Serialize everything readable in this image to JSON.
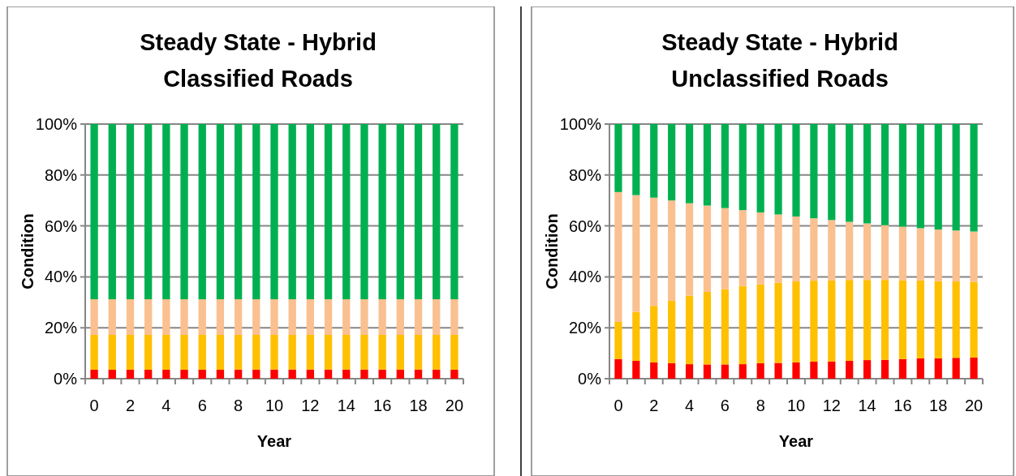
{
  "chart_data": [
    {
      "type": "bar",
      "stacked": true,
      "title": "Steady State - Hybrid\nClassified Roads",
      "xlabel": "Year",
      "ylabel": "Condition",
      "categories": [
        "0",
        null,
        "2",
        null,
        "4",
        null,
        "6",
        null,
        "8",
        null,
        "10",
        null,
        "12",
        null,
        "14",
        null,
        "16",
        null,
        "18",
        null,
        "20"
      ],
      "ylim": [
        0,
        100
      ],
      "yticks": [
        {
          "value": 0,
          "label": "0%"
        },
        {
          "value": 20,
          "label": "20%"
        },
        {
          "value": 40,
          "label": "40%"
        },
        {
          "value": 60,
          "label": "60%"
        },
        {
          "value": 80,
          "label": "80%"
        },
        {
          "value": 100,
          "label": "100%"
        }
      ],
      "grid": "y",
      "series": [
        {
          "color": "#ff0000",
          "values": [
            3.5,
            3.5,
            3.5,
            3.5,
            3.5,
            3.5,
            3.5,
            3.5,
            3.6,
            3.6,
            3.6,
            3.6,
            3.6,
            3.6,
            3.6,
            3.6,
            3.6,
            3.6,
            3.6,
            3.6,
            3.5
          ]
        },
        {
          "color": "#ffc000",
          "values": [
            13.7,
            13.7,
            13.7,
            13.7,
            13.7,
            13.7,
            13.7,
            13.7,
            13.6,
            13.6,
            13.6,
            13.6,
            13.6,
            13.6,
            13.6,
            13.6,
            13.6,
            13.6,
            13.6,
            13.6,
            13.7
          ]
        },
        {
          "color": "#fac090",
          "values": [
            14.0,
            14.0,
            14.0,
            14.0,
            14.0,
            14.0,
            14.0,
            14.0,
            14.0,
            14.0,
            14.0,
            14.0,
            14.0,
            14.0,
            14.0,
            14.0,
            14.0,
            14.0,
            14.0,
            14.0,
            14.0
          ]
        },
        {
          "color": "#00b050",
          "values": [
            68.8,
            68.8,
            68.8,
            68.8,
            68.8,
            68.8,
            68.8,
            68.8,
            68.8,
            68.8,
            68.8,
            68.8,
            68.8,
            68.8,
            68.8,
            68.8,
            68.8,
            68.8,
            68.8,
            68.8,
            68.8
          ]
        }
      ]
    },
    {
      "type": "bar",
      "stacked": true,
      "title": "Steady State - Hybrid\nUnclassified Roads",
      "xlabel": "Year",
      "ylabel": "Condition",
      "categories": [
        "0",
        null,
        "2",
        null,
        "4",
        null,
        "6",
        null,
        "8",
        null,
        "10",
        null,
        "12",
        null,
        "14",
        null,
        "16",
        null,
        "18",
        null,
        "20"
      ],
      "ylim": [
        0,
        100
      ],
      "yticks": [
        {
          "value": 0,
          "label": "0%"
        },
        {
          "value": 20,
          "label": "20%"
        },
        {
          "value": 40,
          "label": "40%"
        },
        {
          "value": 60,
          "label": "60%"
        },
        {
          "value": 80,
          "label": "80%"
        },
        {
          "value": 100,
          "label": "100%"
        }
      ],
      "grid": "y",
      "series": [
        {
          "color": "#ff0000",
          "values": [
            7.7,
            7.0,
            6.4,
            6.1,
            5.7,
            5.6,
            5.6,
            5.7,
            6.1,
            6.2,
            6.4,
            6.7,
            6.8,
            7.0,
            7.3,
            7.4,
            7.7,
            8.0,
            8.0,
            8.2,
            8.3
          ]
        },
        {
          "color": "#ffc000",
          "values": [
            14.6,
            19.2,
            22.2,
            24.5,
            26.9,
            28.5,
            29.6,
            30.7,
            30.9,
            31.5,
            31.8,
            31.8,
            31.8,
            31.8,
            31.5,
            31.4,
            30.9,
            30.6,
            30.3,
            30.0,
            29.7
          ]
        },
        {
          "color": "#fac090",
          "values": [
            51.0,
            45.9,
            42.5,
            39.4,
            36.3,
            33.9,
            31.8,
            29.8,
            28.3,
            26.8,
            25.5,
            24.5,
            23.7,
            22.8,
            22.2,
            21.5,
            21.1,
            20.5,
            20.3,
            20.0,
            19.8
          ]
        },
        {
          "color": "#00b050",
          "values": [
            26.7,
            27.9,
            28.9,
            30.0,
            31.1,
            32.0,
            33.0,
            33.8,
            34.7,
            35.5,
            36.3,
            37.0,
            37.7,
            38.4,
            39.0,
            39.7,
            40.3,
            40.9,
            41.4,
            41.8,
            42.2
          ]
        }
      ]
    }
  ]
}
